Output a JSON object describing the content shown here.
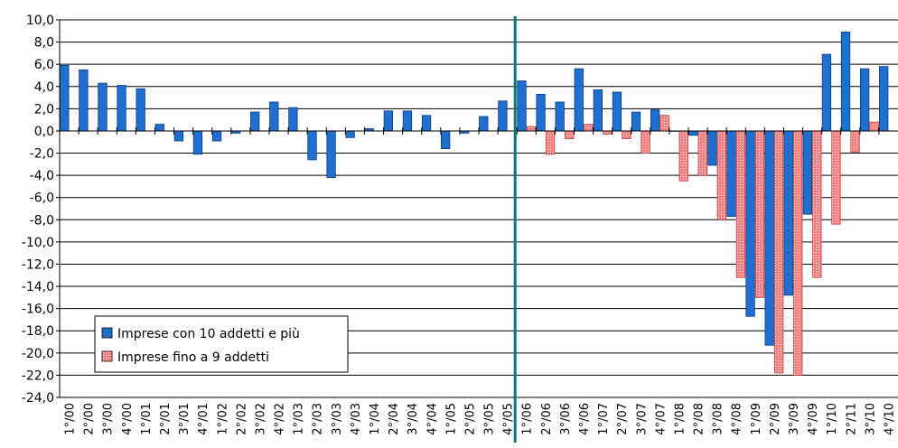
{
  "chart_data": {
    "type": "bar",
    "categories": [
      "1°/00",
      "2°/00",
      "3°/00",
      "4°/00",
      "1°/01",
      "2°/01",
      "3°/01",
      "4°/01",
      "1°/02",
      "2°/02",
      "3°/02",
      "4°/02",
      "1°/03",
      "2°/03",
      "3°/03",
      "4°/03",
      "1°/04",
      "2°/04",
      "3°/04",
      "4°/04",
      "1°/05",
      "2°/05",
      "3°/05",
      "4°/05",
      "1°/06",
      "2°/06",
      "3°/06",
      "4°/06",
      "1°/07",
      "2°/07",
      "3°/07",
      "4°/07",
      "1°/08",
      "2°/08",
      "3°/08",
      "4°/08",
      "1°/09",
      "2°/09",
      "3°/09",
      "4°/09",
      "1°/10",
      "2°/11",
      "3°/10",
      "4°/10"
    ],
    "series": [
      {
        "name": "Imprese con 10 addetti e più",
        "color": "#1f6fd0",
        "values": [
          5.9,
          5.5,
          4.3,
          4.1,
          3.8,
          0.6,
          -0.9,
          -2.1,
          -0.9,
          -0.2,
          1.7,
          2.6,
          2.1,
          -2.6,
          -4.2,
          -0.6,
          0.2,
          1.8,
          1.8,
          1.4,
          -1.6,
          -0.2,
          1.3,
          2.7,
          4.5,
          3.3,
          2.6,
          5.6,
          3.7,
          3.5,
          1.7,
          1.9,
          0.0,
          -0.4,
          -3.1,
          -7.7,
          -16.7,
          -19.3,
          -14.8,
          -7.5,
          6.9,
          8.9,
          5.6,
          5.8
        ]
      },
      {
        "name": "Imprese fino a 9 addetti",
        "color": "#ff8080",
        "values": [
          null,
          null,
          null,
          null,
          null,
          null,
          null,
          null,
          null,
          null,
          null,
          null,
          null,
          null,
          null,
          null,
          null,
          null,
          null,
          null,
          null,
          null,
          null,
          null,
          0.4,
          -2.1,
          -0.7,
          0.6,
          -0.3,
          -0.7,
          -2.0,
          1.4,
          -4.5,
          -4.0,
          -8.0,
          -13.2,
          -15.0,
          -21.8,
          -22.0,
          -13.2,
          -8.4,
          -1.9,
          0.8,
          null
        ]
      }
    ],
    "ylim": [
      -24,
      10
    ],
    "yticks": [
      {
        "value": 10,
        "label": "10,0"
      },
      {
        "value": 8,
        "label": "8,0"
      },
      {
        "value": 6,
        "label": "6,0"
      },
      {
        "value": 4,
        "label": "4,0"
      },
      {
        "value": 2,
        "label": "2,0"
      },
      {
        "value": 0,
        "label": "0,0"
      },
      {
        "value": -2,
        "label": "-2,0"
      },
      {
        "value": -4,
        "label": "-4,0"
      },
      {
        "value": -6,
        "label": "-6,0"
      },
      {
        "value": -8,
        "label": "-8,0"
      },
      {
        "value": -10,
        "label": "-10,0"
      },
      {
        "value": -12,
        "label": "-12,0"
      },
      {
        "value": -14,
        "label": "-14,0"
      },
      {
        "value": -16,
        "label": "-16,0"
      },
      {
        "value": -18,
        "label": "-18,0"
      },
      {
        "value": -20,
        "label": "-20,0"
      },
      {
        "value": -22,
        "label": "-22,0"
      },
      {
        "value": -24,
        "label": "-24,0"
      }
    ],
    "grid": true
  }
}
